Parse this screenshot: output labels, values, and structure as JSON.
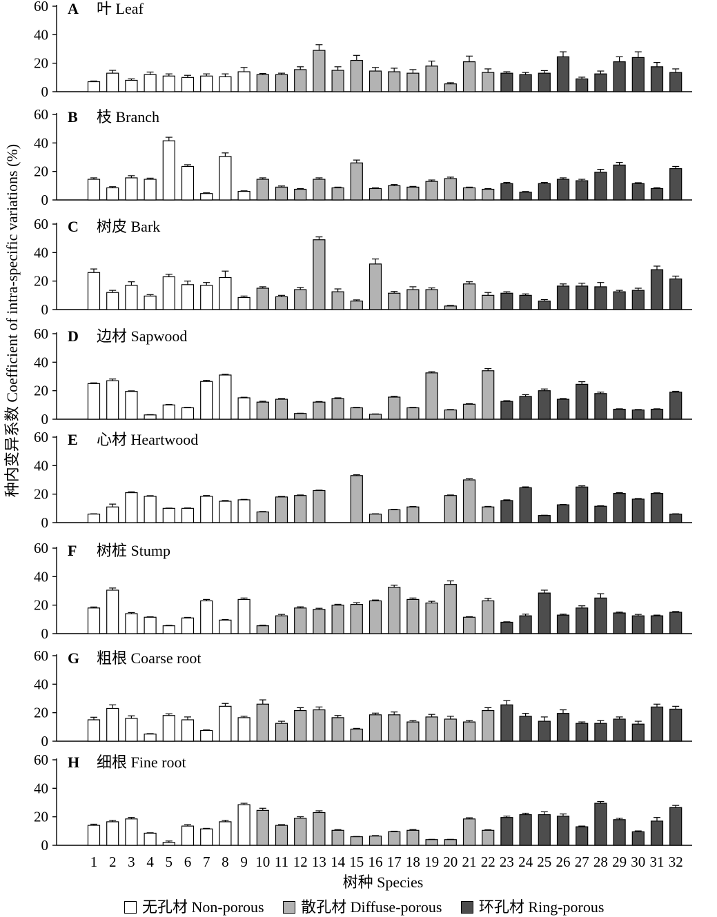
{
  "chart_data": {
    "type": "bar",
    "ylabel": "种内变异系数 Coefficient of intra-specific variations (%)",
    "xlabel": "树种 Species",
    "ylim": [
      0,
      60
    ],
    "yticks": [
      0,
      20,
      40,
      60
    ],
    "categories": [
      "1",
      "2",
      "3",
      "4",
      "5",
      "6",
      "7",
      "8",
      "9",
      "10",
      "11",
      "12",
      "13",
      "14",
      "15",
      "16",
      "17",
      "18",
      "19",
      "20",
      "21",
      "22",
      "23",
      "24",
      "25",
      "26",
      "27",
      "28",
      "29",
      "30",
      "31",
      "32"
    ],
    "groups": [
      {
        "name": "无孔材 Non-porous",
        "color": "#ffffff",
        "members": [
          1,
          2,
          3,
          4,
          5,
          6,
          7,
          8,
          9
        ]
      },
      {
        "name": "散孔材 Diffuse-porous",
        "color": "#b3b3b3",
        "members": [
          10,
          11,
          12,
          13,
          14,
          15,
          16,
          17,
          18,
          19,
          20,
          21,
          22
        ]
      },
      {
        "name": "环孔材 Ring-porous",
        "color": "#4d4d4d",
        "members": [
          23,
          24,
          25,
          26,
          27,
          28,
          29,
          30,
          31,
          32
        ]
      }
    ],
    "panels": [
      {
        "letter": "A",
        "name": "叶 Leaf",
        "values": [
          7,
          13,
          8,
          12,
          11,
          10,
          11,
          10.5,
          14,
          12,
          12,
          15.5,
          29,
          15,
          22,
          14.5,
          14,
          13,
          18,
          5.5,
          21,
          13.5,
          13,
          12,
          13,
          24.5,
          9,
          12.5,
          21,
          24,
          17.5,
          13.5
        ],
        "errors": [
          0.5,
          2,
          1,
          1.8,
          1.5,
          1.5,
          1.5,
          2,
          3,
          0.8,
          1,
          2,
          4,
          2.5,
          3.5,
          2.5,
          2.5,
          2.5,
          3.5,
          0.8,
          4,
          2.5,
          1,
          1.5,
          1.8,
          3.5,
          1.2,
          2,
          3.5,
          4,
          3,
          2.5
        ]
      },
      {
        "name": "枝 Branch",
        "letter": "B",
        "values": [
          14.5,
          8.5,
          15.5,
          14.5,
          41.5,
          23.5,
          4.5,
          30.5,
          6,
          14.5,
          9,
          7.5,
          14.5,
          8.5,
          26,
          8,
          10,
          9,
          13,
          15,
          8.5,
          7.5,
          11.5,
          5.5,
          11.5,
          14.5,
          13.5,
          19.5,
          24.5,
          11.5,
          8,
          22
        ],
        "errors": [
          1,
          0.8,
          1.5,
          0.8,
          2.5,
          1.2,
          0.5,
          2.5,
          0.4,
          1,
          0.8,
          0.5,
          1,
          0.5,
          2,
          0.5,
          0.8,
          0.5,
          1,
          1,
          0.5,
          0.5,
          0.8,
          0.4,
          0.8,
          1,
          1,
          2,
          1.8,
          0.6,
          0.6,
          1.5
        ]
      },
      {
        "letter": "C",
        "name": "树皮 Bark",
        "values": [
          26,
          12,
          17,
          9.5,
          23,
          17.5,
          17,
          22.5,
          8.5,
          15,
          9,
          14,
          49,
          12.5,
          6,
          32,
          11.5,
          14,
          14,
          2.5,
          18,
          10,
          11.5,
          10,
          6,
          16.5,
          16.5,
          16,
          12.5,
          13.5,
          28,
          21.5
        ],
        "errors": [
          2.5,
          1.5,
          2.5,
          1,
          1.8,
          2.5,
          2,
          4.5,
          1,
          1,
          1,
          1.5,
          2,
          2,
          0.8,
          3.5,
          1.2,
          2,
          1.2,
          0.4,
          1.5,
          2,
          1,
          1,
          1,
          1.5,
          2,
          3,
          1,
          1.5,
          2.5,
          2
        ]
      },
      {
        "letter": "D",
        "name": "边材 Sapwood",
        "values": [
          25,
          27,
          19.5,
          3,
          10,
          8,
          26.5,
          31,
          15,
          12,
          14,
          4,
          12,
          14.5,
          8,
          3.5,
          15.5,
          8,
          32.5,
          6.5,
          10.5,
          34,
          12.5,
          16,
          20,
          14,
          24.5,
          18,
          7,
          6.5,
          7,
          19
        ],
        "errors": [
          0.5,
          1.2,
          0.4,
          0.2,
          0.4,
          0.3,
          0.8,
          0.6,
          0.4,
          0.6,
          0.5,
          0.2,
          0.4,
          0.5,
          0.3,
          0.2,
          0.6,
          0.3,
          0.8,
          0.3,
          0.4,
          1.5,
          0.5,
          1.2,
          1.2,
          0.5,
          1.8,
          1,
          0.3,
          0.3,
          0.3,
          0.6
        ]
      },
      {
        "letter": "E",
        "name": "心材 Heartwood",
        "values": [
          6,
          11,
          21,
          18.5,
          10,
          10,
          18.5,
          15,
          16,
          7.5,
          18,
          19,
          22.5,
          null,
          33,
          6,
          9,
          11,
          null,
          19,
          30,
          11,
          15.5,
          24.5,
          5,
          12.5,
          25,
          11.5,
          20.5,
          16.5,
          20.5,
          6
        ],
        "errors": [
          0.2,
          2,
          0.6,
          0.4,
          0.2,
          0.3,
          0.5,
          0.5,
          0.3,
          0.3,
          0.4,
          0.4,
          0.3,
          null,
          0.6,
          0.2,
          0.3,
          0.3,
          null,
          0.4,
          0.8,
          0.4,
          0.5,
          0.6,
          0.2,
          0.3,
          0.8,
          0.3,
          0.5,
          0.4,
          0.4,
          0.2
        ]
      },
      {
        "letter": "F",
        "name": "树桩 Stump",
        "values": [
          18,
          30.5,
          14,
          11.5,
          5.5,
          11,
          23,
          9.5,
          24,
          5.5,
          12.5,
          18,
          17,
          20,
          20.5,
          23,
          32.5,
          24,
          21.5,
          34.5,
          11.5,
          23,
          8,
          12.5,
          28.5,
          13,
          18,
          25,
          14.5,
          12.5,
          12.5,
          15
        ],
        "errors": [
          0.7,
          1.5,
          0.8,
          0.3,
          0.3,
          0.4,
          1,
          0.4,
          1,
          0.4,
          1,
          0.8,
          0.8,
          0.6,
          1.2,
          0.6,
          1.5,
          1,
          1.2,
          2.5,
          0.4,
          1.8,
          0.3,
          1.2,
          2,
          0.7,
          1.5,
          3,
          0.6,
          1,
          0.5,
          0.5
        ]
      },
      {
        "letter": "G",
        "name": "粗根 Coarse root",
        "values": [
          15,
          23,
          16,
          5,
          18,
          15,
          7.5,
          24.5,
          16.5,
          26,
          12.5,
          21.5,
          22,
          16.5,
          8.5,
          18.5,
          18.5,
          13.5,
          17,
          15.5,
          13.5,
          21.5,
          25.5,
          17.5,
          14,
          19.5,
          12.5,
          12.5,
          15.5,
          12,
          24,
          22.5
        ],
        "errors": [
          1.8,
          2.5,
          1.8,
          0.3,
          1.2,
          2,
          0.4,
          2,
          1,
          3,
          1.5,
          2,
          2,
          1.5,
          0.5,
          1.2,
          2,
          1,
          1.8,
          2,
          1,
          2,
          3,
          2,
          3,
          2.5,
          1,
          2,
          1.5,
          2,
          2,
          2
        ]
      },
      {
        "letter": "H",
        "name": "细根 Fine root",
        "values": [
          14,
          16.5,
          18.5,
          8.5,
          2,
          13.5,
          11.5,
          16.5,
          28.5,
          24.5,
          14,
          19,
          23,
          10.5,
          6,
          6.5,
          9.5,
          10.5,
          4,
          4,
          18.5,
          10.5,
          19.5,
          21.5,
          21.5,
          20.5,
          13,
          29.5,
          18,
          9.5,
          17,
          26.5
        ],
        "errors": [
          0.8,
          1,
          1,
          0.3,
          1,
          1,
          0.4,
          1,
          1,
          1.5,
          0.5,
          1,
          1.2,
          0.5,
          0.2,
          0.3,
          0.4,
          0.6,
          0.2,
          0.2,
          0.8,
          0.4,
          1,
          1,
          2,
          1.5,
          0.5,
          1.2,
          1,
          0.6,
          2.5,
          1.5
        ]
      }
    ]
  }
}
